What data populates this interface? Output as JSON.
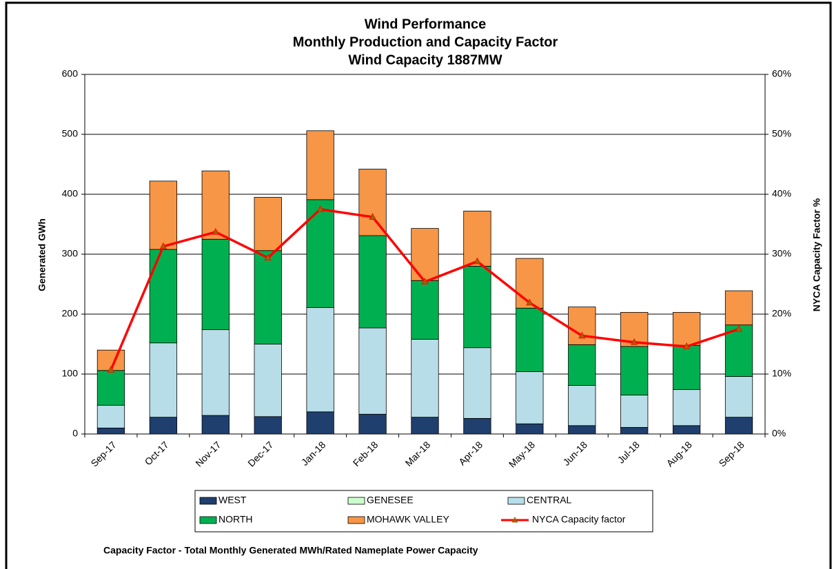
{
  "chart_data": {
    "type": "bar",
    "title": [
      "Wind Performance",
      "Monthly Production and Capacity Factor",
      "Wind Capacity 1887MW"
    ],
    "y_label": "Generated GWh",
    "y2_label": "NYCA  Capacity  Factor %",
    "footnote": "Capacity Factor  - Total Monthly Generated MWh/Rated Nameplate Power Capacity",
    "stacked": true,
    "grid": true,
    "categories": [
      "Sep-17",
      "Oct-17",
      "Nov-17",
      "Dec-17",
      "Jan-18",
      "Feb-18",
      "Mar-18",
      "Apr-18",
      "May-18",
      "Jun-18",
      "Jul-18",
      "Aug-18",
      "Sep-18"
    ],
    "ylim": [
      0,
      600
    ],
    "yticks": [
      0,
      100,
      200,
      300,
      400,
      500,
      600
    ],
    "y2lim": [
      0,
      60
    ],
    "y2ticks": [
      {
        "value": 0,
        "label": "0%"
      },
      {
        "value": 10,
        "label": "10%"
      },
      {
        "value": 20,
        "label": "20%"
      },
      {
        "value": 30,
        "label": "30%"
      },
      {
        "value": 40,
        "label": "40%"
      },
      {
        "value": 50,
        "label": "50%"
      },
      {
        "value": 60,
        "label": "60%"
      }
    ],
    "series": [
      {
        "name": "WEST",
        "color": "#1f3f6e",
        "values": [
          10,
          28,
          31,
          29,
          37,
          33,
          28,
          26,
          17,
          14,
          11,
          14,
          28
        ]
      },
      {
        "name": "GENESEE",
        "color": "#ccffcc",
        "values": [
          0,
          0,
          0,
          0,
          0,
          0,
          0,
          0,
          0,
          0,
          0,
          0,
          0
        ]
      },
      {
        "name": "CENTRAL",
        "color": "#b7dde8",
        "values": [
          38,
          124,
          143,
          121,
          174,
          144,
          130,
          118,
          87,
          67,
          54,
          60,
          68
        ]
      },
      {
        "name": "NORTH",
        "color": "#00b050",
        "values": [
          58,
          156,
          151,
          156,
          180,
          154,
          98,
          136,
          106,
          68,
          81,
          74,
          86
        ]
      },
      {
        "name": "MOHAWK VALLEY",
        "color": "#f79646",
        "values": [
          34,
          114,
          114,
          89,
          115,
          111,
          87,
          92,
          83,
          63,
          57,
          55,
          57
        ]
      },
      {
        "name": "NYCA Capacity factor",
        "type": "line",
        "axis": "y2",
        "color": "#ff0000",
        "marker_color": "#9c6500",
        "values": [
          10.7,
          31.3,
          33.7,
          29.4,
          37.5,
          36.2,
          25.4,
          28.8,
          21.9,
          16.4,
          15.3,
          14.6,
          17.5
        ]
      }
    ]
  }
}
